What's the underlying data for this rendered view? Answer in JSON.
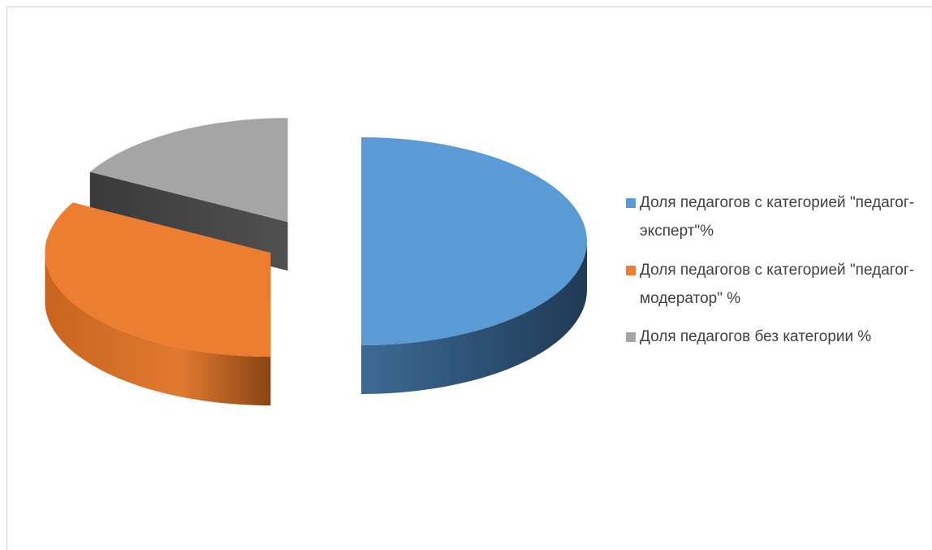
{
  "chart_data": {
    "type": "pie3d",
    "categories": [
      "Доля педагогов с категорией \"педагог-эксперт\"%",
      "Доля педагогов с категорией \"педагог-модератор\" %",
      "Доля педагогов без категории %"
    ],
    "values": [
      50,
      33,
      17
    ],
    "colors": [
      "#5b9bd5",
      "#ed7d31",
      "#a5a5a5"
    ],
    "exploded": true,
    "legend": "right"
  }
}
